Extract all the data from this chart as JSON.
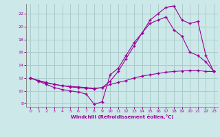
{
  "xlabel": "Windchill (Refroidissement éolien,°C)",
  "bg_color": "#cce8e8",
  "grid_color": "#aacccc",
  "line_color": "#990099",
  "xlim": [
    -0.5,
    23.5
  ],
  "ylim": [
    7.5,
    23.5
  ],
  "yticks": [
    8,
    10,
    12,
    14,
    16,
    18,
    20,
    22
  ],
  "xticks": [
    0,
    1,
    2,
    3,
    4,
    5,
    6,
    7,
    8,
    9,
    10,
    11,
    12,
    13,
    14,
    15,
    16,
    17,
    18,
    19,
    20,
    21,
    22,
    23
  ],
  "series": [
    {
      "x": [
        0,
        1,
        2,
        3,
        4,
        5,
        6,
        7,
        8,
        9,
        10,
        11,
        12,
        13,
        14,
        15,
        16,
        17,
        18,
        19,
        20,
        21,
        22,
        23
      ],
      "y": [
        12.0,
        11.6,
        11.2,
        11.0,
        10.8,
        10.7,
        10.6,
        10.5,
        10.4,
        10.5,
        11.0,
        11.3,
        11.6,
        12.0,
        12.3,
        12.5,
        12.7,
        12.9,
        13.0,
        13.1,
        13.2,
        13.2,
        13.0,
        13.0
      ]
    },
    {
      "x": [
        0,
        1,
        2,
        3,
        4,
        5,
        6,
        7,
        8,
        9,
        10,
        11,
        12,
        13,
        14,
        15,
        16,
        17,
        18,
        19,
        20,
        21,
        22,
        23
      ],
      "y": [
        12.0,
        11.5,
        11.0,
        10.5,
        10.2,
        10.0,
        9.8,
        9.5,
        7.9,
        8.3,
        12.5,
        13.5,
        15.5,
        17.5,
        19.0,
        20.5,
        21.0,
        21.5,
        19.5,
        18.5,
        16.0,
        15.5,
        14.5,
        13.0
      ]
    },
    {
      "x": [
        0,
        1,
        2,
        3,
        4,
        5,
        6,
        7,
        8,
        9,
        10,
        11,
        12,
        13,
        14,
        15,
        16,
        17,
        18,
        19,
        20,
        21,
        22,
        23
      ],
      "y": [
        12.0,
        11.6,
        11.3,
        11.0,
        10.8,
        10.6,
        10.5,
        10.4,
        10.3,
        10.5,
        11.5,
        13.0,
        15.0,
        17.0,
        19.0,
        21.0,
        22.0,
        23.0,
        23.2,
        21.0,
        20.5,
        20.8,
        15.5,
        13.0
      ]
    }
  ]
}
